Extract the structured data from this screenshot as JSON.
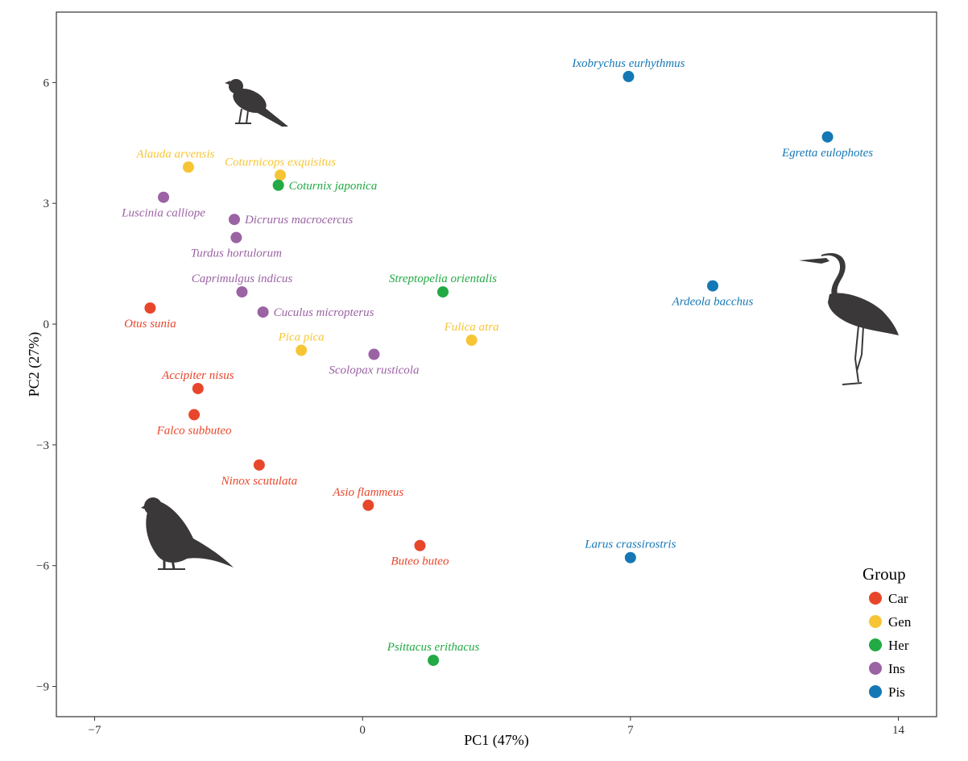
{
  "chart_data": {
    "type": "scatter",
    "xlabel": "PC1 (47%)",
    "ylabel": "PC2 (27%)",
    "xlim": [
      -8.0,
      15.0
    ],
    "ylim": [
      -9.75,
      7.75
    ],
    "xticks": [
      -7,
      0,
      7,
      14
    ],
    "xtick_labels": [
      "−7",
      "0",
      "7",
      "14"
    ],
    "yticks": [
      6,
      3,
      0,
      -3,
      -6,
      -9
    ],
    "ytick_labels": [
      "6",
      "3",
      "0",
      "−3",
      "−6",
      "−9"
    ],
    "grid": false,
    "legend": {
      "title": "Group",
      "placement": "bottom-right",
      "entries": [
        {
          "name": "Car",
          "color": "#e8462b"
        },
        {
          "name": "Gen",
          "color": "#f7c534"
        },
        {
          "name": "Her",
          "color": "#22aa44"
        },
        {
          "name": "Ins",
          "color": "#9b62a4"
        },
        {
          "name": "Pis",
          "color": "#1578b5"
        }
      ]
    },
    "points": [
      {
        "label": "Ixobrychus eurhythmus",
        "group": "Pis",
        "x": 6.95,
        "y": 6.15,
        "anchor": "above"
      },
      {
        "label": "Egretta eulophotes",
        "group": "Pis",
        "x": 12.15,
        "y": 4.65,
        "anchor": "below"
      },
      {
        "label": "Ardeola bacchus",
        "group": "Pis",
        "x": 9.15,
        "y": 0.95,
        "anchor": "below"
      },
      {
        "label": "Larus crassirostris",
        "group": "Pis",
        "x": 7.0,
        "y": -5.8,
        "anchor": "above"
      },
      {
        "label": "Alauda arvensis",
        "group": "Gen",
        "x": -4.55,
        "y": 3.9,
        "anchor": "above-left"
      },
      {
        "label": "Coturnicops exquisitus",
        "group": "Gen",
        "x": -2.15,
        "y": 3.7,
        "anchor": "above"
      },
      {
        "label": "Coturnix japonica",
        "group": "Her",
        "x": -2.2,
        "y": 3.45,
        "anchor": "right"
      },
      {
        "label": "Luscinia calliope",
        "group": "Ins",
        "x": -5.2,
        "y": 3.15,
        "anchor": "below"
      },
      {
        "label": "Dicrurus macrocercus",
        "group": "Ins",
        "x": -3.35,
        "y": 2.6,
        "anchor": "right"
      },
      {
        "label": "Turdus hortulorum",
        "group": "Ins",
        "x": -3.3,
        "y": 2.15,
        "anchor": "below"
      },
      {
        "label": "Caprimulgus indicus",
        "group": "Ins",
        "x": -3.15,
        "y": 0.8,
        "anchor": "above"
      },
      {
        "label": "Cuculus micropterus",
        "group": "Ins",
        "x": -2.6,
        "y": 0.3,
        "anchor": "right"
      },
      {
        "label": "Streptopelia orientalis",
        "group": "Her",
        "x": 2.1,
        "y": 0.8,
        "anchor": "above"
      },
      {
        "label": "Otus sunia",
        "group": "Car",
        "x": -5.55,
        "y": 0.4,
        "anchor": "below"
      },
      {
        "label": "Pica pica",
        "group": "Gen",
        "x": -1.6,
        "y": -0.65,
        "anchor": "above"
      },
      {
        "label": "Fulica atra",
        "group": "Gen",
        "x": 2.85,
        "y": -0.4,
        "anchor": "above"
      },
      {
        "label": "Scolopax rusticola",
        "group": "Ins",
        "x": 0.3,
        "y": -0.75,
        "anchor": "below"
      },
      {
        "label": "Accipiter nisus",
        "group": "Car",
        "x": -4.3,
        "y": -1.6,
        "anchor": "above"
      },
      {
        "label": "Falco subbuteo",
        "group": "Car",
        "x": -4.4,
        "y": -2.25,
        "anchor": "below"
      },
      {
        "label": "Ninox scutulata",
        "group": "Car",
        "x": -2.7,
        "y": -3.5,
        "anchor": "below"
      },
      {
        "label": "Asio flammeus",
        "group": "Car",
        "x": 0.15,
        "y": -4.5,
        "anchor": "above"
      },
      {
        "label": "Buteo buteo",
        "group": "Car",
        "x": 1.5,
        "y": -5.5,
        "anchor": "below"
      },
      {
        "label": "Psittacus erithacus",
        "group": "Her",
        "x": 1.85,
        "y": -8.35,
        "anchor": "above"
      }
    ]
  }
}
